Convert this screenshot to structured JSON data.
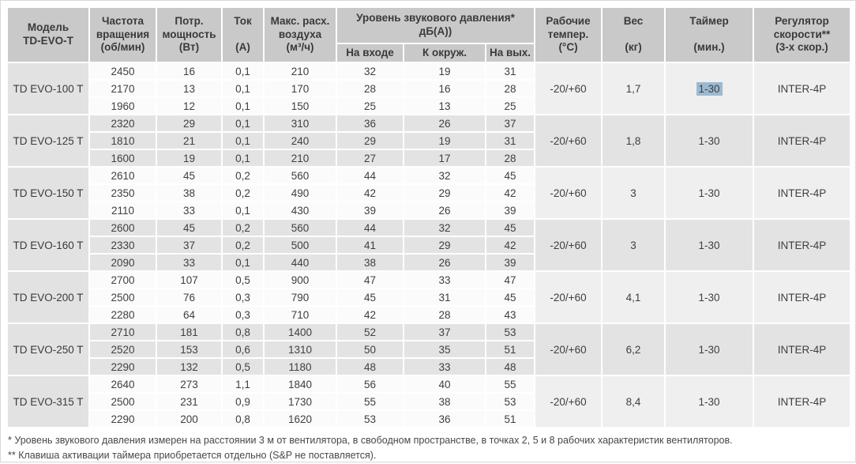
{
  "table": {
    "header": {
      "model": "Модель\nTD-EVO-T",
      "speed": "Частота\nвращения\n(об/мин)",
      "power": "Потр.\nмощность\n(Вт)",
      "current": "Ток\n\n(А)",
      "airflow": "Макс. расх.\nвоздуха\n(м³/ч)",
      "sound": "Уровень звукового давления*\nдБ(А))",
      "sound_sub": [
        "На входе",
        "К окруж.",
        "На вых."
      ],
      "temp": "Рабочие\nтемпер.\n(°С)",
      "weight": "Вес\n\n(кг)",
      "timer": "Таймер\n\n(мин.)",
      "regulator": "Регулятор\nскорости**\n(3-х скор.)"
    },
    "groups": [
      {
        "model": "TD EVO-100 T",
        "shaded": false,
        "rows": [
          [
            "2450",
            "16",
            "0,1",
            "210",
            "32",
            "19",
            "31"
          ],
          [
            "2170",
            "13",
            "0,1",
            "170",
            "28",
            "16",
            "28"
          ],
          [
            "1960",
            "12",
            "0,1",
            "150",
            "25",
            "13",
            "25"
          ]
        ],
        "temp": "-20/+60",
        "weight": "1,7",
        "timer": "1-30",
        "timer_highlighted": true,
        "regulator": "INTER-4P"
      },
      {
        "model": "TD EVO-125 T",
        "shaded": true,
        "rows": [
          [
            "2320",
            "29",
            "0,1",
            "310",
            "36",
            "26",
            "37"
          ],
          [
            "1810",
            "21",
            "0,1",
            "240",
            "29",
            "19",
            "31"
          ],
          [
            "1600",
            "19",
            "0,1",
            "210",
            "27",
            "17",
            "28"
          ]
        ],
        "temp": "-20/+60",
        "weight": "1,8",
        "timer": "1-30",
        "timer_highlighted": false,
        "regulator": "INTER-4P"
      },
      {
        "model": "TD EVO-150 T",
        "shaded": false,
        "rows": [
          [
            "2610",
            "45",
            "0,2",
            "560",
            "44",
            "32",
            "45"
          ],
          [
            "2350",
            "38",
            "0,2",
            "490",
            "42",
            "29",
            "42"
          ],
          [
            "2110",
            "33",
            "0,1",
            "430",
            "39",
            "26",
            "39"
          ]
        ],
        "temp": "-20/+60",
        "weight": "3",
        "timer": "1-30",
        "timer_highlighted": false,
        "regulator": "INTER-4P"
      },
      {
        "model": "TD EVO-160 T",
        "shaded": true,
        "rows": [
          [
            "2600",
            "45",
            "0,2",
            "560",
            "44",
            "32",
            "45"
          ],
          [
            "2330",
            "37",
            "0,2",
            "500",
            "41",
            "29",
            "42"
          ],
          [
            "2090",
            "33",
            "0,1",
            "440",
            "38",
            "26",
            "39"
          ]
        ],
        "temp": "-20/+60",
        "weight": "3",
        "timer": "1-30",
        "timer_highlighted": false,
        "regulator": "INTER-4P"
      },
      {
        "model": "TD EVO-200 T",
        "shaded": false,
        "rows": [
          [
            "2700",
            "107",
            "0,5",
            "900",
            "47",
            "33",
            "47"
          ],
          [
            "2500",
            "76",
            "0,3",
            "790",
            "45",
            "31",
            "45"
          ],
          [
            "2280",
            "64",
            "0,3",
            "710",
            "42",
            "28",
            "43"
          ]
        ],
        "temp": "-20/+60",
        "weight": "4,1",
        "timer": "1-30",
        "timer_highlighted": false,
        "regulator": "INTER-4P"
      },
      {
        "model": "TD EVO-250 T",
        "shaded": true,
        "rows": [
          [
            "2710",
            "181",
            "0,8",
            "1400",
            "52",
            "37",
            "53"
          ],
          [
            "2520",
            "153",
            "0,6",
            "1310",
            "50",
            "35",
            "51"
          ],
          [
            "2290",
            "132",
            "0,5",
            "1180",
            "48",
            "33",
            "48"
          ]
        ],
        "temp": "-20/+60",
        "weight": "6,2",
        "timer": "1-30",
        "timer_highlighted": false,
        "regulator": "INTER-4P"
      },
      {
        "model": "TD EVO-315 T",
        "shaded": false,
        "rows": [
          [
            "2640",
            "273",
            "1,1",
            "1840",
            "56",
            "40",
            "55"
          ],
          [
            "2500",
            "231",
            "0,9",
            "1730",
            "55",
            "38",
            "53"
          ],
          [
            "2290",
            "200",
            "0,8",
            "1620",
            "53",
            "36",
            "51"
          ]
        ],
        "temp": "-20/+60",
        "weight": "8,4",
        "timer": "1-30",
        "timer_highlighted": false,
        "regulator": "INTER-4P"
      }
    ],
    "footnotes": [
      "* Уровень звукового давления измерен на расстоянии 3 м от вентилятора, в свободном пространстве, в точках 2, 5 и 8 рабочих характеристик вентиляторов.",
      "** Клавиша активации таймера приобретается отдельно (S&P не поставляется)."
    ]
  },
  "colors": {
    "header_bg": "#c9c9c9",
    "plain_bg": "#fbfbfb",
    "plain_merged_bg": "#efefef",
    "shaded_bg": "#e3e3e3",
    "model_bg": "#e2e2e2",
    "highlight": "#9cb9d2"
  }
}
